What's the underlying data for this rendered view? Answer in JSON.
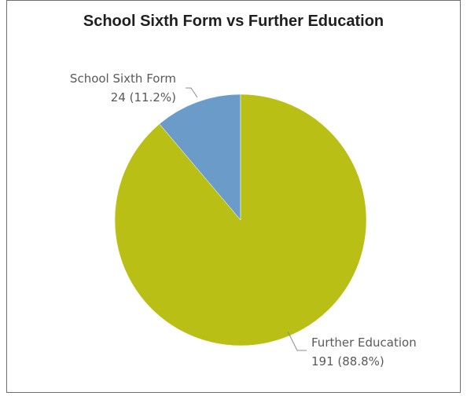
{
  "chart_data": {
    "type": "pie",
    "title": "School Sixth Form vs Further Education",
    "slices": [
      {
        "label": "School Sixth Form",
        "value": 24,
        "percent_text": "24 (11.2%)",
        "color": "#6b9cc9"
      },
      {
        "label": "Further Education",
        "value": 191,
        "percent_text": "191 (88.8%)",
        "color": "#b9bf15"
      }
    ],
    "start_angle_deg": 0,
    "direction": "counterclockwise-first-slice",
    "legend": "none",
    "label_style": "outside-with-leader-lines"
  }
}
